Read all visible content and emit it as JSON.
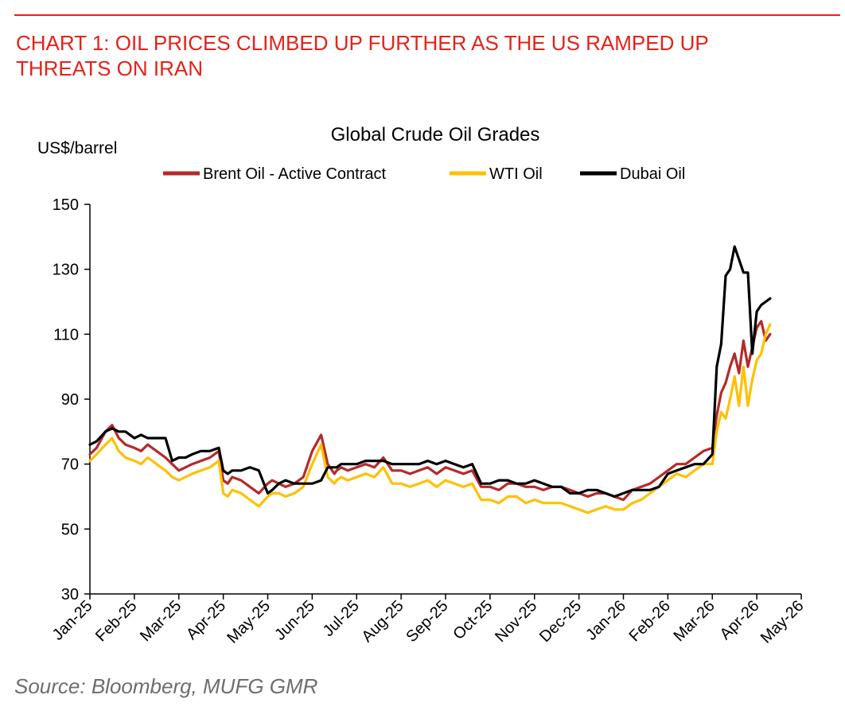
{
  "header": {
    "line1": "CHART 1: OIL PRICES CLIMBED UP FURTHER AS THE US RAMPED UP",
    "line2": "THREATS ON IRAN"
  },
  "footer": {
    "source": "Source: Bloomberg, MUFG GMR"
  },
  "colors": {
    "accent": "#e2231a",
    "brent": "#b52a2a",
    "wti": "#ffc000",
    "dubai": "#000000",
    "source_text": "#6d6d6d"
  },
  "chart_data": {
    "type": "line",
    "title": "Global Crude Oil Grades",
    "ylabel": "US$/barrel",
    "xlabel": "",
    "ylim": [
      30,
      150
    ],
    "yticks": [
      30,
      50,
      70,
      90,
      110,
      130,
      150
    ],
    "xlim": [
      0,
      16
    ],
    "x_tick_labels": [
      "Jan-25",
      "Feb-25",
      "Mar-25",
      "Apr-25",
      "May-25",
      "Jun-25",
      "Jul-25",
      "Aug-25",
      "Sep-25",
      "Oct-25",
      "Nov-25",
      "Dec-25",
      "Jan-26",
      "Feb-26",
      "Mar-26",
      "Apr-26",
      "May-26"
    ],
    "legend_position": "top-center",
    "grid": false,
    "series": [
      {
        "name": "Brent Oil - Active Contract",
        "color": "#b52a2a",
        "x": [
          0,
          0.15,
          0.35,
          0.5,
          0.65,
          0.8,
          1.0,
          1.15,
          1.3,
          1.5,
          1.7,
          1.85,
          2.0,
          2.15,
          2.3,
          2.5,
          2.7,
          2.9,
          3.0,
          3.1,
          3.2,
          3.4,
          3.6,
          3.8,
          4.0,
          4.1,
          4.25,
          4.4,
          4.6,
          4.8,
          5.0,
          5.2,
          5.35,
          5.5,
          5.55,
          5.65,
          5.8,
          6.0,
          6.2,
          6.4,
          6.6,
          6.8,
          7.0,
          7.2,
          7.4,
          7.6,
          7.8,
          8.0,
          8.2,
          8.4,
          8.6,
          8.8,
          9.0,
          9.2,
          9.4,
          9.6,
          9.8,
          10.0,
          10.2,
          10.4,
          10.6,
          10.8,
          11.0,
          11.2,
          11.4,
          11.6,
          11.8,
          12.0,
          12.2,
          12.4,
          12.6,
          12.8,
          13.0,
          13.2,
          13.4,
          13.6,
          13.8,
          14.0,
          14.1,
          14.2,
          14.3,
          14.4,
          14.5,
          14.6,
          14.7,
          14.8,
          14.9,
          15.0,
          15.1,
          15.2,
          15.3
        ],
        "values": [
          73,
          75,
          80,
          82,
          78,
          76,
          75,
          74,
          76,
          74,
          72,
          70,
          68,
          69,
          70,
          71,
          72,
          74,
          65,
          64,
          66,
          65,
          63,
          61,
          64,
          65,
          64,
          63,
          64,
          66,
          74,
          79,
          70,
          67,
          68,
          69,
          68,
          69,
          70,
          69,
          72,
          68,
          68,
          67,
          68,
          69,
          67,
          69,
          68,
          67,
          68,
          63,
          63,
          62,
          64,
          64,
          63,
          63,
          62,
          63,
          63,
          62,
          61,
          60,
          61,
          61,
          60,
          59,
          62,
          63,
          64,
          66,
          68,
          70,
          70,
          72,
          74,
          75,
          85,
          92,
          95,
          100,
          104,
          98,
          108,
          100,
          106,
          112,
          114,
          108,
          110
        ]
      },
      {
        "name": "WTI Oil",
        "color": "#ffc000",
        "x": [
          0,
          0.15,
          0.35,
          0.5,
          0.65,
          0.8,
          1.0,
          1.15,
          1.3,
          1.5,
          1.7,
          1.85,
          2.0,
          2.15,
          2.3,
          2.5,
          2.7,
          2.9,
          3.0,
          3.1,
          3.2,
          3.4,
          3.6,
          3.8,
          4.0,
          4.1,
          4.25,
          4.4,
          4.6,
          4.8,
          5.0,
          5.2,
          5.35,
          5.5,
          5.55,
          5.65,
          5.8,
          6.0,
          6.2,
          6.4,
          6.6,
          6.8,
          7.0,
          7.2,
          7.4,
          7.6,
          7.8,
          8.0,
          8.2,
          8.4,
          8.6,
          8.8,
          9.0,
          9.2,
          9.4,
          9.6,
          9.8,
          10.0,
          10.2,
          10.4,
          10.6,
          10.8,
          11.0,
          11.2,
          11.4,
          11.6,
          11.8,
          12.0,
          12.2,
          12.4,
          12.6,
          12.8,
          13.0,
          13.2,
          13.4,
          13.6,
          13.8,
          14.0,
          14.1,
          14.2,
          14.3,
          14.4,
          14.5,
          14.6,
          14.7,
          14.8,
          14.9,
          15.0,
          15.1,
          15.2,
          15.3
        ],
        "values": [
          71,
          73,
          76,
          78,
          74,
          72,
          71,
          70,
          72,
          70,
          68,
          66,
          65,
          66,
          67,
          68,
          69,
          71,
          61,
          60,
          62,
          61,
          59,
          57,
          60,
          61,
          61,
          60,
          61,
          63,
          70,
          76,
          66,
          64,
          65,
          66,
          65,
          66,
          67,
          66,
          69,
          64,
          64,
          63,
          64,
          65,
          63,
          65,
          64,
          63,
          64,
          59,
          59,
          58,
          60,
          60,
          58,
          59,
          58,
          58,
          58,
          57,
          56,
          55,
          56,
          57,
          56,
          56,
          58,
          59,
          61,
          63,
          65,
          67,
          66,
          68,
          70,
          70,
          80,
          86,
          84,
          90,
          97,
          88,
          100,
          88,
          96,
          102,
          104,
          110,
          113
        ]
      },
      {
        "name": "Dubai Oil",
        "color": "#000000",
        "x": [
          0,
          0.15,
          0.35,
          0.5,
          0.65,
          0.8,
          1.0,
          1.15,
          1.3,
          1.5,
          1.7,
          1.85,
          2.0,
          2.15,
          2.3,
          2.5,
          2.7,
          2.9,
          3.0,
          3.1,
          3.2,
          3.4,
          3.6,
          3.8,
          4.0,
          4.1,
          4.25,
          4.4,
          4.6,
          4.8,
          5.0,
          5.2,
          5.35,
          5.5,
          5.55,
          5.65,
          5.8,
          6.0,
          6.2,
          6.4,
          6.6,
          6.8,
          7.0,
          7.2,
          7.4,
          7.6,
          7.8,
          8.0,
          8.2,
          8.4,
          8.6,
          8.8,
          9.0,
          9.2,
          9.4,
          9.6,
          9.8,
          10.0,
          10.2,
          10.4,
          10.6,
          10.8,
          11.0,
          11.2,
          11.4,
          11.6,
          11.8,
          12.0,
          12.2,
          12.4,
          12.6,
          12.8,
          13.0,
          13.2,
          13.4,
          13.6,
          13.8,
          14.0,
          14.1,
          14.2,
          14.3,
          14.4,
          14.5,
          14.6,
          14.7,
          14.8,
          14.9,
          15.0,
          15.1,
          15.2,
          15.3
        ],
        "values": [
          76,
          77,
          80,
          81,
          80,
          80,
          78,
          79,
          78,
          78,
          78,
          71,
          72,
          72,
          73,
          74,
          74,
          75,
          68,
          67,
          68,
          68,
          69,
          68,
          61,
          62,
          64,
          65,
          64,
          64,
          64,
          65,
          69,
          69,
          69,
          70,
          70,
          70,
          71,
          71,
          71,
          70,
          70,
          70,
          70,
          71,
          70,
          71,
          70,
          69,
          70,
          64,
          64,
          65,
          65,
          64,
          64,
          65,
          64,
          63,
          63,
          61,
          61,
          62,
          62,
          61,
          60,
          61,
          62,
          62,
          62,
          63,
          67,
          68,
          69,
          70,
          70,
          73,
          100,
          107,
          128,
          130,
          137,
          133,
          129,
          129,
          104,
          117,
          119,
          120,
          121
        ]
      }
    ]
  }
}
